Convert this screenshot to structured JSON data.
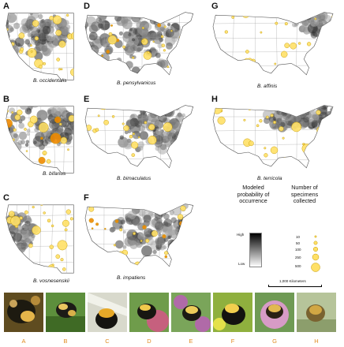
{
  "panels": [
    {
      "letter": "A",
      "species": "B. occidentalis"
    },
    {
      "letter": "B",
      "species": "B. bifarius"
    },
    {
      "letter": "C",
      "species": "B. vosnesenskii"
    },
    {
      "letter": "D",
      "species": "B. pensylvanicus"
    },
    {
      "letter": "E",
      "species": "B. bimaculatus"
    },
    {
      "letter": "F",
      "species": "B. impatiens"
    },
    {
      "letter": "G",
      "species": "B. affinis"
    },
    {
      "letter": "H",
      "species": "B. terricola"
    }
  ],
  "legend": {
    "prob_title_lines": [
      "Modeled",
      "probability of",
      "occurrence"
    ],
    "high": "High",
    "low": "Low",
    "count_title_lines": [
      "Number of",
      "specimens",
      "collected"
    ],
    "counts": [
      "10",
      "50",
      "100",
      "250",
      "500"
    ],
    "scale": "1,000 Kilometers"
  },
  "photo_labels": [
    "A",
    "B",
    "C",
    "D",
    "E",
    "F",
    "G",
    "H"
  ],
  "colors": {
    "dot_fill": "#ffe066",
    "dot_stroke": "#c49a00",
    "orange": "#f08a00",
    "dark": "#1a1a1a"
  }
}
